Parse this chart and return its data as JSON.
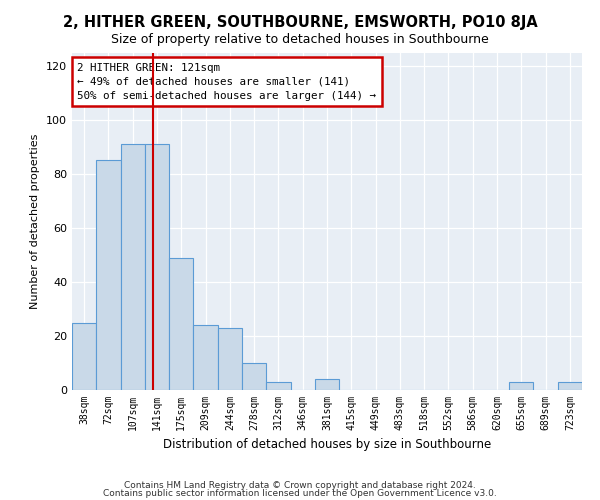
{
  "title": "2, HITHER GREEN, SOUTHBOURNE, EMSWORTH, PO10 8JA",
  "subtitle": "Size of property relative to detached houses in Southbourne",
  "xlabel": "Distribution of detached houses by size in Southbourne",
  "ylabel": "Number of detached properties",
  "bar_color": "#c9d9e8",
  "bar_edge_color": "#5b9bd5",
  "background_color": "#e8eef5",
  "categories": [
    "38sqm",
    "72sqm",
    "107sqm",
    "141sqm",
    "175sqm",
    "209sqm",
    "244sqm",
    "278sqm",
    "312sqm",
    "346sqm",
    "381sqm",
    "415sqm",
    "449sqm",
    "483sqm",
    "518sqm",
    "552sqm",
    "586sqm",
    "620sqm",
    "655sqm",
    "689sqm",
    "723sqm"
  ],
  "values": [
    25,
    85,
    91,
    91,
    49,
    24,
    23,
    10,
    3,
    0,
    4,
    0,
    0,
    0,
    0,
    0,
    0,
    0,
    3,
    0,
    3
  ],
  "ylim": [
    0,
    125
  ],
  "yticks": [
    0,
    20,
    40,
    60,
    80,
    100,
    120
  ],
  "red_line_x": 2.83,
  "annotation_text": "2 HITHER GREEN: 121sqm\n← 49% of detached houses are smaller (141)\n50% of semi-detached houses are larger (144) →",
  "annotation_box_color": "#ffffff",
  "annotation_box_edge_color": "#cc0000",
  "footnote1": "Contains HM Land Registry data © Crown copyright and database right 2024.",
  "footnote2": "Contains public sector information licensed under the Open Government Licence v3.0."
}
